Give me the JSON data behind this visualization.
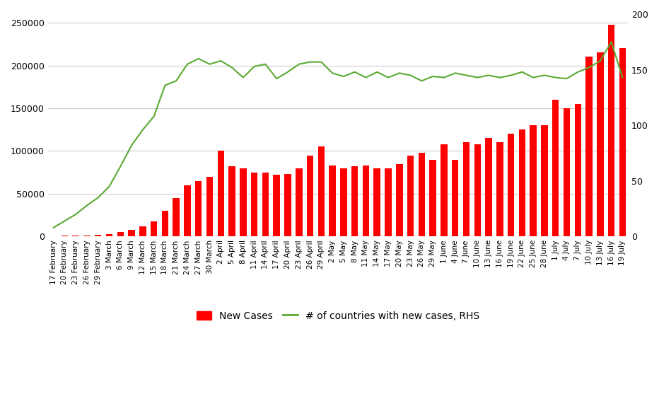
{
  "labels": [
    "17 February",
    "20 February",
    "23 February",
    "26 February",
    "29 February",
    "3 March",
    "6 March",
    "9 March",
    "12 March",
    "15 March",
    "18 March",
    "21 March",
    "24 March",
    "27 March",
    "30 March",
    "2 April",
    "5 April",
    "8 April",
    "11 April",
    "14 April",
    "17 April",
    "20 April",
    "23 April",
    "26 April",
    "29 April",
    "2 May",
    "5 May",
    "8 May",
    "11 May",
    "14 May",
    "17 May",
    "20 May",
    "23 May",
    "26 May",
    "29 May",
    "1 June",
    "4 June",
    "7 June",
    "10 June",
    "13 June",
    "16 June",
    "19 June",
    "22 June",
    "25 June",
    "28 June",
    "1 July",
    "4 July",
    "7 July",
    "10 July",
    "13 July",
    "16 July",
    "19 July"
  ],
  "new_cases": [
    500,
    800,
    1200,
    1500,
    1800,
    3000,
    5000,
    8000,
    12000,
    18000,
    30000,
    45000,
    60000,
    65000,
    70000,
    100000,
    82000,
    80000,
    75000,
    75000,
    72000,
    73000,
    80000,
    95000,
    105000,
    83000,
    80000,
    82000,
    83000,
    80000,
    80000,
    85000,
    95000,
    98000,
    90000,
    108000,
    90000,
    110000,
    108000,
    115000,
    110000,
    120000,
    125000,
    130000,
    130000,
    160000,
    150000,
    155000,
    210000,
    215000,
    248000,
    220000
  ],
  "countries": [
    8,
    14,
    20,
    28,
    35,
    45,
    63,
    82,
    96,
    108,
    136,
    140,
    155,
    160,
    155,
    158,
    152,
    143,
    153,
    155,
    142,
    148,
    155,
    157,
    157,
    147,
    144,
    148,
    143,
    148,
    143,
    147,
    145,
    140,
    144,
    143,
    147,
    145,
    143,
    145,
    143,
    145,
    148,
    143,
    145,
    143,
    142,
    148,
    152,
    158,
    175,
    143
  ],
  "bar_color": "#ff0000",
  "line_color": "#5aaa32",
  "background_color": "#ffffff",
  "ylim_left": [
    0,
    260000
  ],
  "ylim_right": [
    0,
    200
  ],
  "yticks_left": [
    0,
    50000,
    100000,
    150000,
    200000,
    250000
  ],
  "yticks_right": [
    0,
    50,
    100,
    150,
    200
  ],
  "grid_color": "#cccccc",
  "legend_labels": [
    "New Cases",
    "# of countries with new cases, RHS"
  ]
}
